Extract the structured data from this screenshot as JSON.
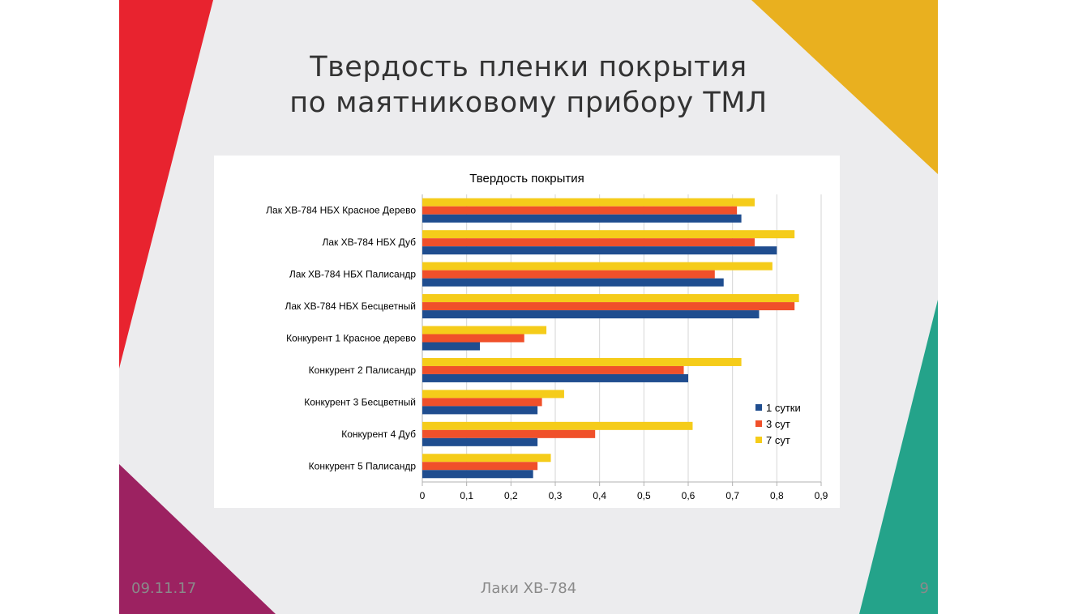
{
  "slide": {
    "title_line1": "Твердость пленки покрытия",
    "title_line2": "по маятниковому прибору ТМЛ",
    "footer_date": "09.11.17",
    "footer_center": "Лаки ХВ-784",
    "page_number": "9"
  },
  "colors": {
    "red": "#e8232f",
    "yellow": "#e9b01f",
    "purple": "#9c2261",
    "teal": "#24a38a",
    "background": "#ececee",
    "footer_text": "#8a8a8a"
  },
  "chart_data": {
    "type": "bar",
    "orientation": "horizontal",
    "title": "Твердость покрытия",
    "categories": [
      "Лак ХВ-784 НБХ Красное Дерево",
      "Лак ХВ-784 НБХ Дуб",
      "Лак ХВ-784 НБХ Палисандр",
      "Лак ХВ-784 НБХ Бесцветный",
      "Конкурент 1  Красное дерево",
      "Конкурент 2  Палисандр",
      "Конкурент 3  Бесцветный",
      "Конкурент 4  Дуб",
      "Конкурент 5   Палисандр"
    ],
    "series": [
      {
        "name": "1 сутки",
        "color": "#1f4d8f",
        "values": [
          0.72,
          0.8,
          0.68,
          0.76,
          0.13,
          0.6,
          0.26,
          0.26,
          0.25
        ]
      },
      {
        "name": "3 сут",
        "color": "#f0502a",
        "values": [
          0.71,
          0.75,
          0.66,
          0.84,
          0.23,
          0.59,
          0.27,
          0.39,
          0.26
        ]
      },
      {
        "name": "7 сут",
        "color": "#f5cc1a",
        "values": [
          0.75,
          0.84,
          0.79,
          0.85,
          0.28,
          0.72,
          0.32,
          0.61,
          0.29
        ]
      }
    ],
    "xlim": [
      0,
      0.9
    ],
    "xticks": [
      "0",
      "0,1",
      "0,2",
      "0,3",
      "0,4",
      "0,5",
      "0,6",
      "0,7",
      "0,8",
      "0,9"
    ],
    "grid": true,
    "legend_position": "right"
  }
}
